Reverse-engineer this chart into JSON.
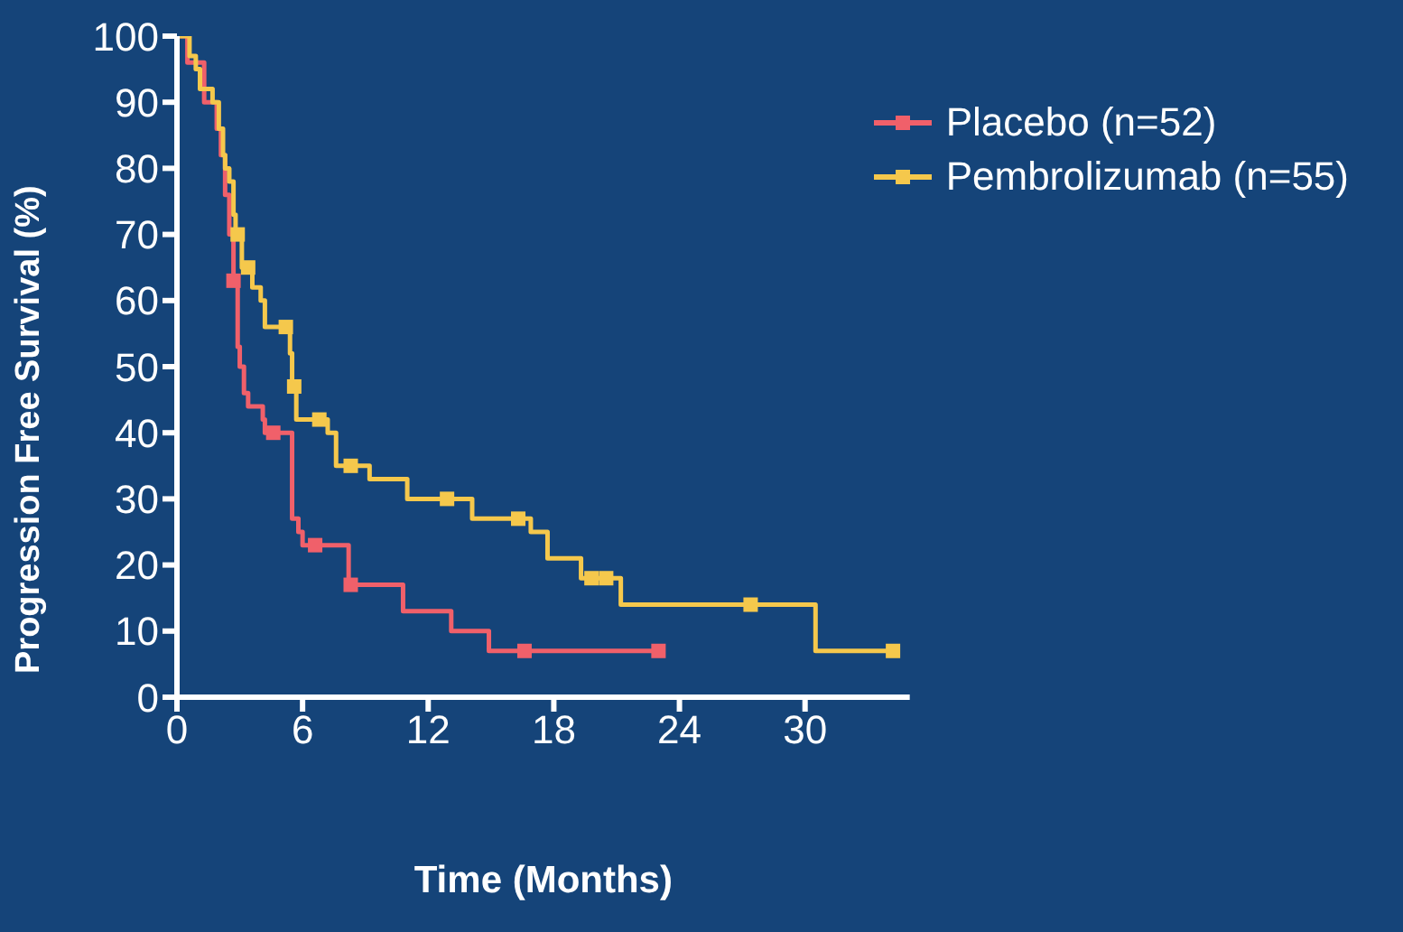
{
  "chart_data": {
    "type": "step",
    "xlabel": "Time (Months)",
    "ylabel": "Progression Free Survival (%)",
    "xlim": [
      0,
      35
    ],
    "xticks": [
      0,
      6,
      12,
      18,
      24,
      30
    ],
    "ylim": [
      0,
      100
    ],
    "yticks": [
      0,
      10,
      20,
      30,
      40,
      50,
      60,
      70,
      80,
      90,
      100
    ],
    "grid": false,
    "legend": "top right",
    "line_style": "solid",
    "marker": "none",
    "series": [
      {
        "name": "Placebo (n=52)",
        "color": "#f0606a",
        "x": [
          0,
          0.5,
          1.3,
          1.9,
          2.1,
          2.3,
          2.5,
          2.7,
          2.9,
          3.0,
          3.2,
          3.4,
          4.1,
          4.2,
          5.5,
          5.8,
          6.0,
          8.2,
          10.8,
          13.1,
          14.9,
          23.0
        ],
        "values": [
          100,
          96,
          90,
          86,
          82,
          76,
          70,
          63,
          53,
          50,
          46,
          44,
          42,
          40,
          27,
          25,
          23,
          17,
          13,
          10,
          7,
          7
        ]
      },
      {
        "name": "Pembrolizumab (n=55)",
        "color": "#f5c84c",
        "x": [
          0,
          0.6,
          0.9,
          1.1,
          1.7,
          2.0,
          2.2,
          2.3,
          2.5,
          2.7,
          2.8,
          3.1,
          3.6,
          4.0,
          4.2,
          5.4,
          5.5,
          5.7,
          7.2,
          7.6,
          9.2,
          11.0,
          14.1,
          16.9,
          17.7,
          19.3,
          21.2,
          30.5,
          34.2
        ],
        "values": [
          100,
          97,
          95,
          92,
          90,
          86,
          82,
          80,
          78,
          73,
          70,
          65,
          62,
          60,
          56,
          52,
          47,
          42,
          40,
          35,
          33,
          30,
          27,
          25,
          21,
          18,
          14,
          7,
          7
        ]
      },
      {
        "type": "scatter",
        "marker": "square",
        "color": "#f0606a",
        "x": [
          2.7,
          4.6,
          6.6,
          8.3,
          16.6,
          23.0
        ],
        "values": [
          63,
          40,
          23,
          17,
          7,
          7
        ]
      },
      {
        "type": "scatter",
        "marker": "square",
        "color": "#f5c84c",
        "x": [
          2.9,
          3.4,
          5.2,
          5.6,
          6.8,
          8.3,
          12.9,
          16.3,
          19.8,
          20.5,
          27.4,
          34.2
        ],
        "values": [
          70,
          65,
          56,
          47,
          42,
          35,
          30,
          27,
          18,
          18,
          14,
          7
        ]
      }
    ]
  }
}
